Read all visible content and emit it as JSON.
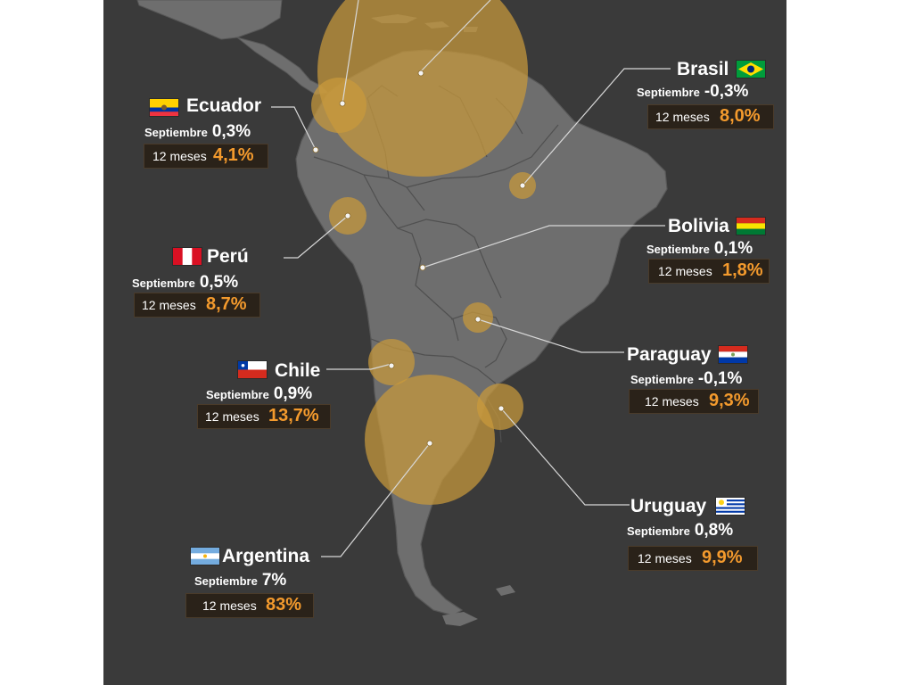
{
  "colors": {
    "background": "#3a3a3a",
    "land": "#6e6e6e",
    "bubble": "#c99a3c",
    "highlight": "#f39a2d",
    "box": "#2a2219"
  },
  "countries": [
    {
      "name": "Ecuador",
      "month_label": "Septiembre",
      "month_value": "0,3%",
      "year_label": "12 meses",
      "year_value": "4,1%",
      "flag": "ecuador-flag-icon"
    },
    {
      "name": "Brasil",
      "month_label": "Septiembre",
      "month_value": "-0,3%",
      "year_label": "12 meses",
      "year_value": "8,0%",
      "flag": "brazil-flag-icon"
    },
    {
      "name": "Perú",
      "month_label": "Septiembre",
      "month_value": "0,5%",
      "year_label": "12 meses",
      "year_value": "8,7%",
      "flag": "peru-flag-icon"
    },
    {
      "name": "Bolivia",
      "month_label": "Septiembre",
      "month_value": "0,1%",
      "year_label": "12 meses",
      "year_value": "1,8%",
      "flag": "bolivia-flag-icon"
    },
    {
      "name": "Chile",
      "month_label": "Septiembre",
      "month_value": "0,9%",
      "year_label": "12 meses",
      "year_value": "13,7%",
      "flag": "chile-flag-icon"
    },
    {
      "name": "Paraguay",
      "month_label": "Septiembre",
      "month_value": "-0,1%",
      "year_label": "12 meses",
      "year_value": "9,3%",
      "flag": "paraguay-flag-icon"
    },
    {
      "name": "Uruguay",
      "month_label": "Septiembre",
      "month_value": "0,8%",
      "year_label": "12 meses",
      "year_value": "9,9%",
      "flag": "uruguay-flag-icon"
    },
    {
      "name": "Argentina",
      "month_label": "Septiembre",
      "month_value": "7%",
      "year_label": "12 meses",
      "year_value": "83%",
      "flag": "argentina-flag-icon"
    }
  ]
}
